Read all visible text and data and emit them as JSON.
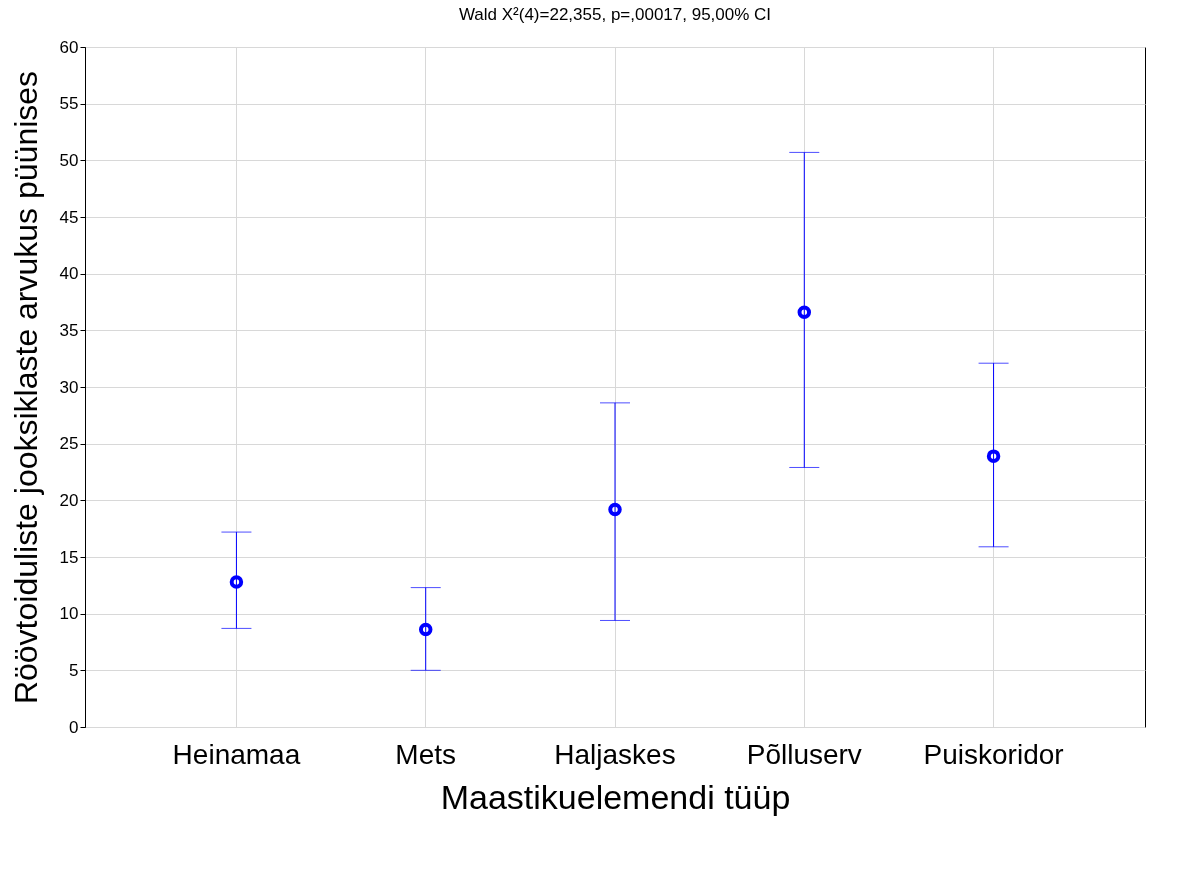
{
  "chart_data": {
    "type": "scatter",
    "title": "Wald  X²(4)=22,355, p=,00017, 95,00% CI",
    "xlabel": "Maastikuelemendi tüüp",
    "ylabel": "Röövtoiduliste jooksiklaste arvukus püünises",
    "categories": [
      "Heinamaa",
      "Mets",
      "Haljaskes",
      "Põlluserv",
      "Puiskoridor"
    ],
    "series": [
      {
        "color": "#0000ff",
        "values": [
          12.8,
          8.6,
          19.2,
          36.6,
          23.9
        ],
        "errors": [
          [
            8.7,
            17.2
          ],
          [
            5.0,
            12.3
          ],
          [
            9.4,
            28.6
          ],
          [
            22.9,
            50.7
          ],
          [
            15.9,
            32.1
          ]
        ]
      }
    ],
    "ylim": [
      0,
      60
    ],
    "yticks": [
      0,
      5,
      10,
      15,
      20,
      25,
      30,
      35,
      40,
      45,
      50,
      55,
      60
    ],
    "grid": true,
    "marker": "circle"
  }
}
